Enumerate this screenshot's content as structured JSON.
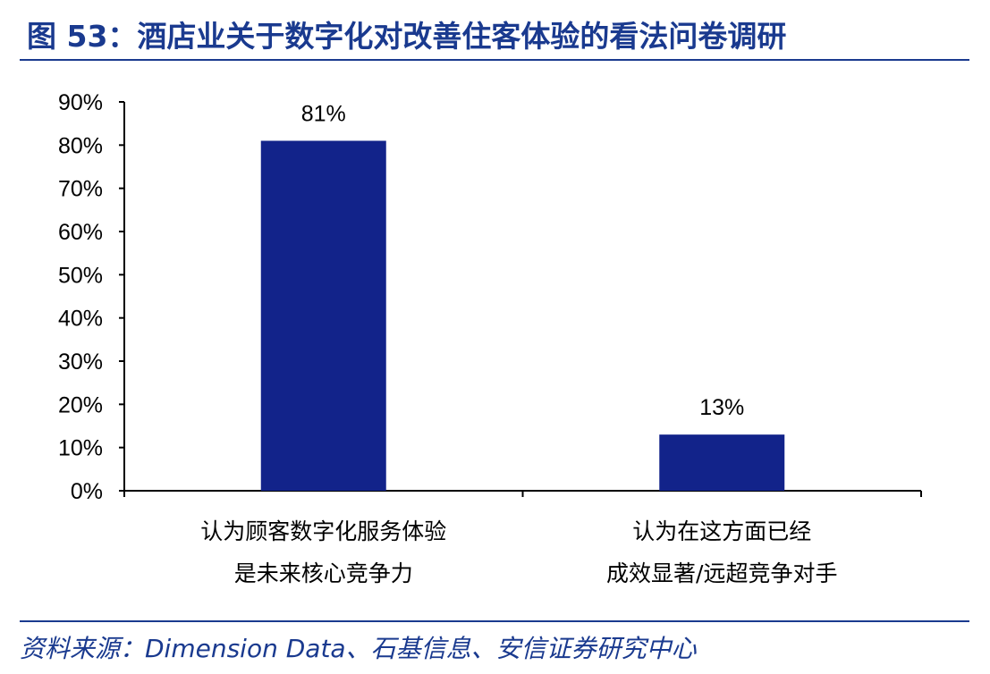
{
  "title": "图 53：酒店业关于数字化对改善住客体验的看法问卷调研",
  "source": "资料来源：Dimension Data、石基信息、安信证券研究中心",
  "colors": {
    "bar": "#12238a",
    "accent": "#1a3a8f",
    "axis": "#000000"
  },
  "chart_data": {
    "type": "bar",
    "categories": [
      [
        "认为顾客数字化服务体验",
        "是未来核心竞争力"
      ],
      [
        "认为在这方面已经",
        "成效显著/远超竞争对手"
      ]
    ],
    "values": [
      81,
      13
    ],
    "data_labels": [
      "81%",
      "13%"
    ],
    "yticks": [
      "0%",
      "10%",
      "20%",
      "30%",
      "40%",
      "50%",
      "60%",
      "70%",
      "80%",
      "90%"
    ],
    "ylim": [
      0,
      90
    ],
    "grid": false,
    "legend": "none"
  }
}
